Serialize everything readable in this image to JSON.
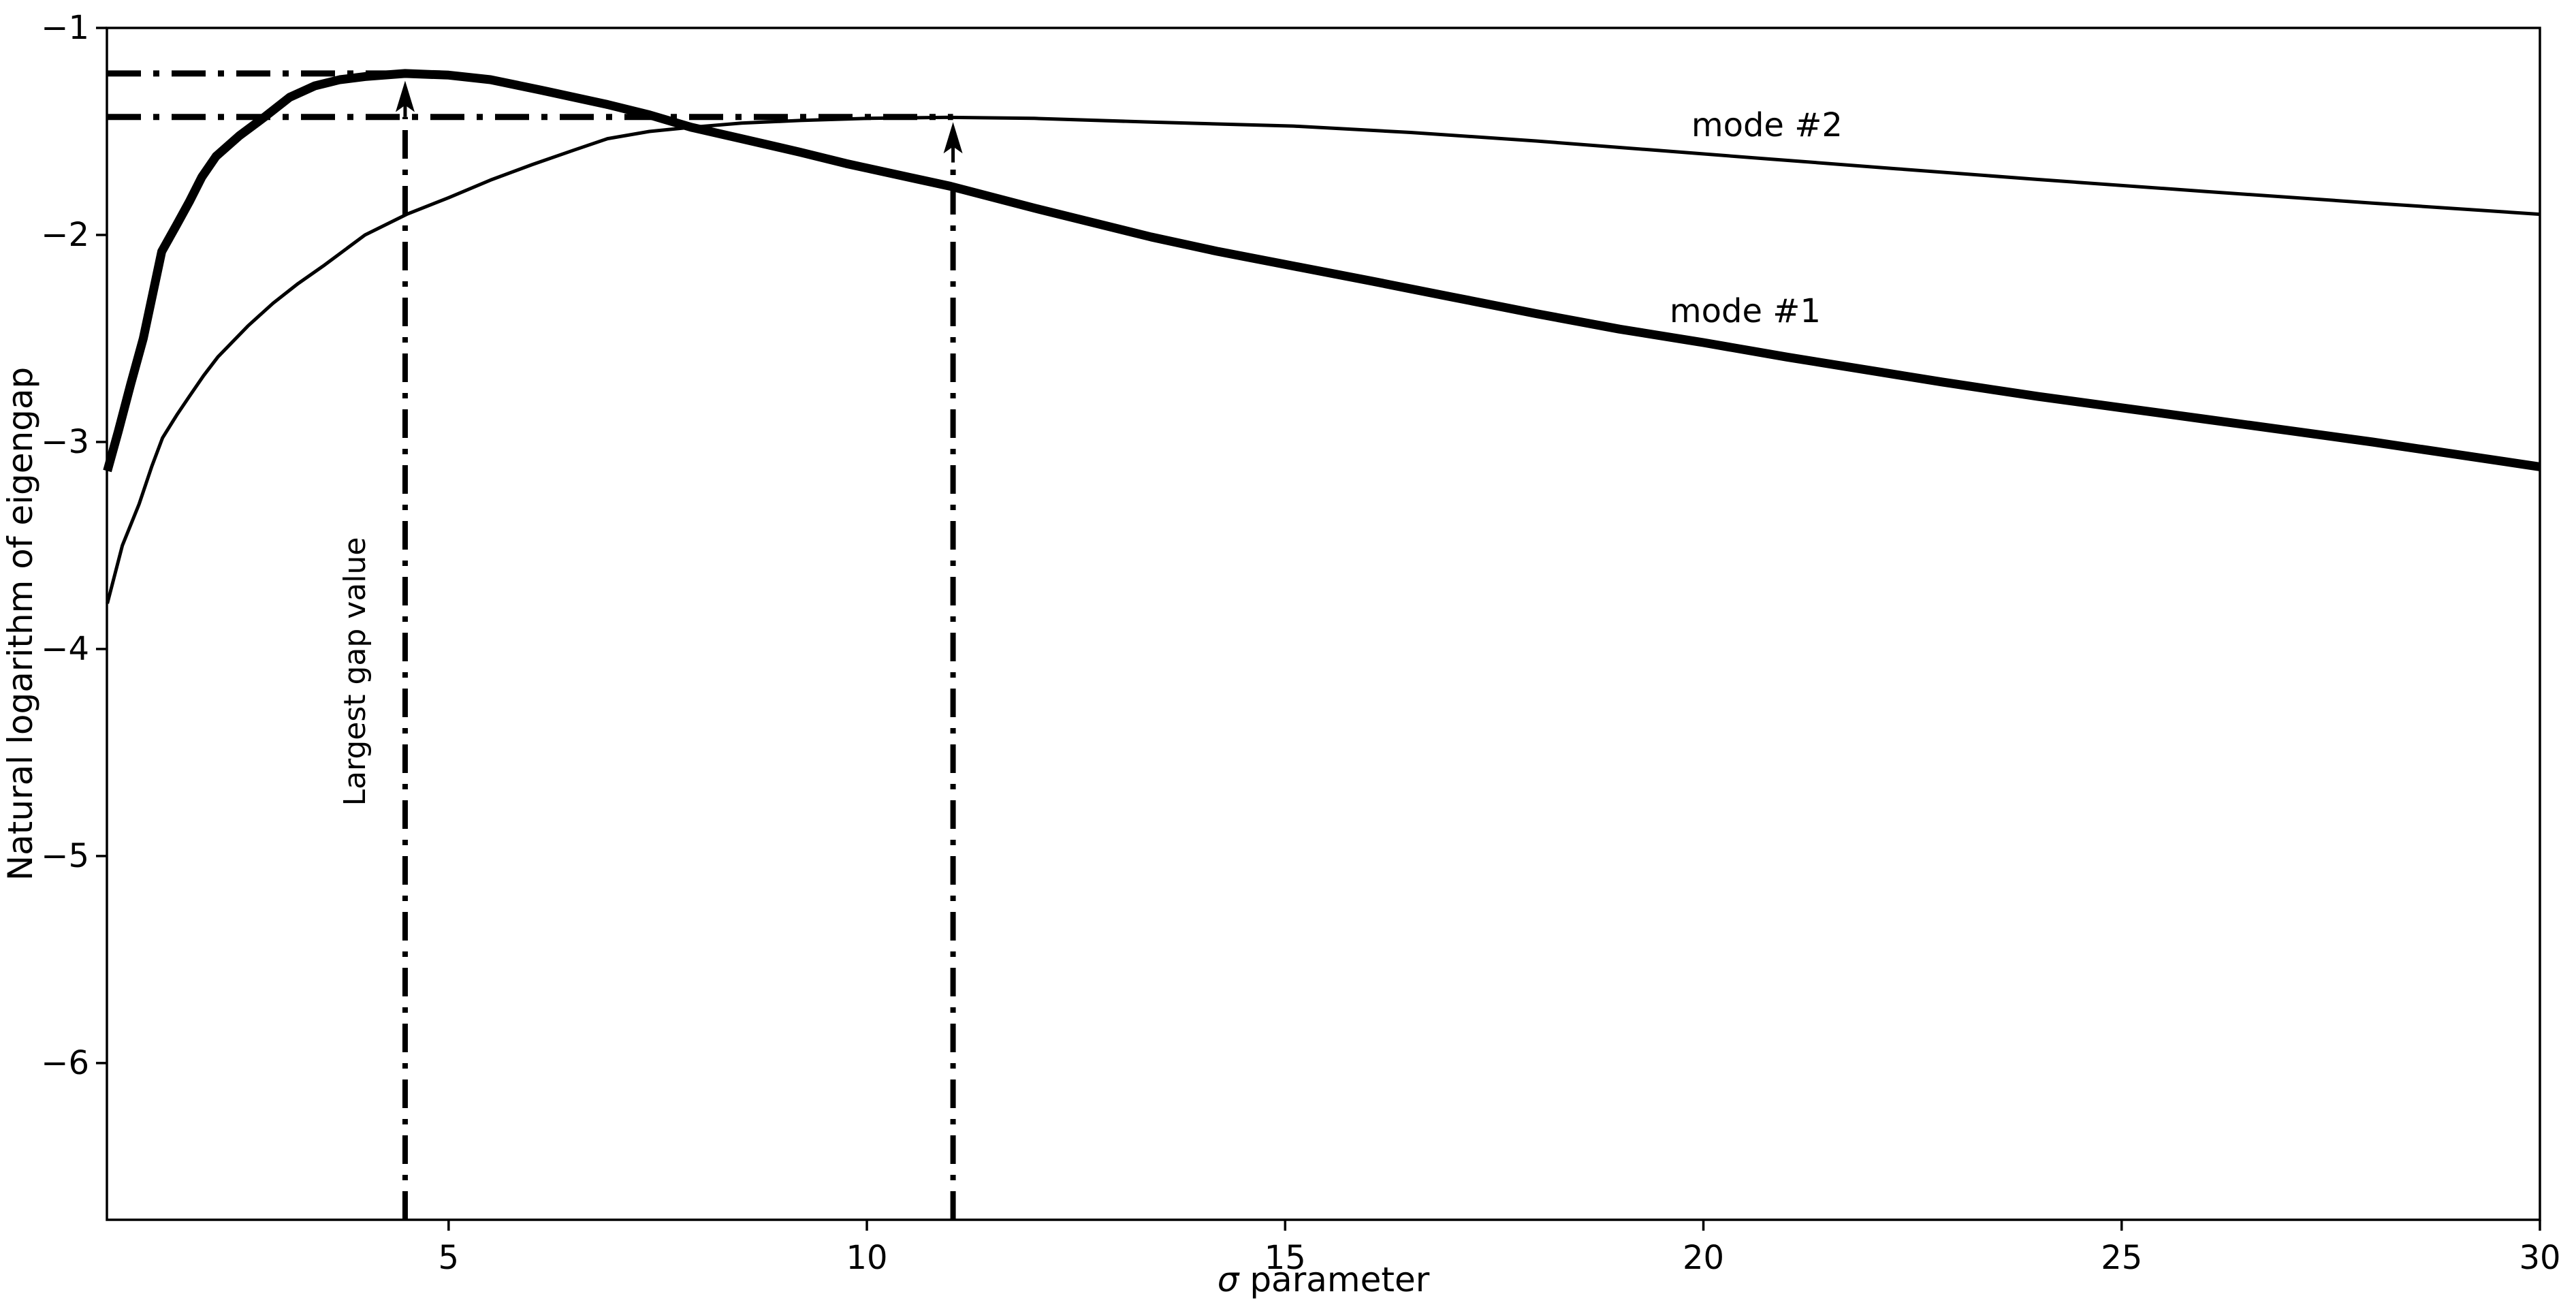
{
  "figure": {
    "background": "#ffffff",
    "line_color": "#000000"
  },
  "labels": {
    "ylabel": "Natural logarithm of eigengap",
    "xlabel_symbol": "σ",
    "xlabel_rest": " parameter",
    "mode1": "mode #1",
    "mode2": "mode #2",
    "largest_gap": "Largest gap value"
  },
  "chart_data": {
    "type": "line",
    "title": "",
    "xlabel": "σ parameter",
    "ylabel": "Natural logarithm of eigengap",
    "xlim": [
      0.915,
      30
    ],
    "ylim": [
      -6.757,
      -1
    ],
    "grid": false,
    "legend_position": "inline-text-labels",
    "x_ticks": [
      5,
      10,
      15,
      20,
      25,
      30
    ],
    "x_tick_labels": [
      "5",
      "10",
      "15",
      "20",
      "25",
      "30"
    ],
    "y_ticks": [
      -1,
      -2,
      -3,
      -4,
      -5,
      -6
    ],
    "y_tick_labels": [
      "−1",
      "−2",
      "−3",
      "−4",
      "−5",
      "−6"
    ],
    "series": [
      {
        "name": "mode #1",
        "linewidth": 13,
        "points": [
          [
            0.92,
            -3.14
          ],
          [
            1.05,
            -2.95
          ],
          [
            1.2,
            -2.72
          ],
          [
            1.35,
            -2.5
          ],
          [
            1.57,
            -2.08
          ],
          [
            1.75,
            -1.95
          ],
          [
            1.9,
            -1.84
          ],
          [
            2.05,
            -1.72
          ],
          [
            2.22,
            -1.62
          ],
          [
            2.5,
            -1.52
          ],
          [
            2.8,
            -1.43
          ],
          [
            3.1,
            -1.335
          ],
          [
            3.4,
            -1.28
          ],
          [
            3.7,
            -1.25
          ],
          [
            4.0,
            -1.235
          ],
          [
            4.48,
            -1.22
          ],
          [
            5.0,
            -1.228
          ],
          [
            5.5,
            -1.25
          ],
          [
            6.1,
            -1.3
          ],
          [
            6.9,
            -1.37
          ],
          [
            7.4,
            -1.42
          ],
          [
            7.9,
            -1.48
          ],
          [
            8.5,
            -1.535
          ],
          [
            9.2,
            -1.6
          ],
          [
            9.75,
            -1.655
          ],
          [
            10.6,
            -1.73
          ],
          [
            11.0,
            -1.765
          ],
          [
            12.0,
            -1.87
          ],
          [
            13.4,
            -2.01
          ],
          [
            14.2,
            -2.08
          ],
          [
            15.1,
            -2.15
          ],
          [
            16.0,
            -2.22
          ],
          [
            17.0,
            -2.3
          ],
          [
            18.0,
            -2.38
          ],
          [
            19.0,
            -2.455
          ],
          [
            20.0,
            -2.52
          ],
          [
            21.0,
            -2.59
          ],
          [
            22.0,
            -2.655
          ],
          [
            22.85,
            -2.71
          ],
          [
            24.0,
            -2.78
          ],
          [
            25.0,
            -2.835
          ],
          [
            26.0,
            -2.89
          ],
          [
            27.0,
            -2.945
          ],
          [
            28.0,
            -3.0
          ],
          [
            29.0,
            -3.06
          ],
          [
            30.0,
            -3.12
          ]
        ]
      },
      {
        "name": "mode #2",
        "linewidth": 5,
        "points": [
          [
            0.92,
            -3.78
          ],
          [
            1.1,
            -3.5
          ],
          [
            1.3,
            -3.3
          ],
          [
            1.45,
            -3.12
          ],
          [
            1.58,
            -2.98
          ],
          [
            1.75,
            -2.87
          ],
          [
            1.9,
            -2.78
          ],
          [
            2.07,
            -2.68
          ],
          [
            2.24,
            -2.59
          ],
          [
            2.6,
            -2.44
          ],
          [
            2.9,
            -2.33
          ],
          [
            3.2,
            -2.235
          ],
          [
            3.5,
            -2.15
          ],
          [
            4.0,
            -2.0
          ],
          [
            4.5,
            -1.9
          ],
          [
            5.0,
            -1.82
          ],
          [
            5.5,
            -1.735
          ],
          [
            6.0,
            -1.66
          ],
          [
            6.5,
            -1.59
          ],
          [
            6.9,
            -1.535
          ],
          [
            7.4,
            -1.5
          ],
          [
            7.9,
            -1.48
          ],
          [
            8.5,
            -1.46
          ],
          [
            9.2,
            -1.447
          ],
          [
            10.0,
            -1.437
          ],
          [
            11.0,
            -1.432
          ],
          [
            12.0,
            -1.437
          ],
          [
            13.4,
            -1.455
          ],
          [
            15.1,
            -1.474
          ],
          [
            16.5,
            -1.505
          ],
          [
            18.0,
            -1.546
          ],
          [
            19.4,
            -1.59
          ],
          [
            20.75,
            -1.632
          ],
          [
            22.3,
            -1.68
          ],
          [
            24.0,
            -1.732
          ],
          [
            26.0,
            -1.79
          ],
          [
            28.0,
            -1.846
          ],
          [
            30.0,
            -1.9
          ]
        ]
      }
    ],
    "annotations": {
      "hlines": [
        {
          "y": -1.22,
          "x0": 0.915,
          "x1": 4.9,
          "meaning": "largest gap value of mode #1"
        },
        {
          "y": -1.43,
          "x0": 0.915,
          "x1": 11.03,
          "meaning": "largest gap value of mode #2"
        }
      ],
      "varrows": [
        {
          "x": 4.48,
          "y_from": -6.757,
          "y_dash_to": -1.43,
          "y_tip": -1.255,
          "meaning": "sigma of mode #1 maximum"
        },
        {
          "x": 11.03,
          "y_from": -6.757,
          "y_dash_to": -1.65,
          "y_tip": -1.455,
          "meaning": "sigma of mode #2 maximum"
        }
      ],
      "labels_pos": {
        "mode1": [
          20.5,
          -2.37
        ],
        "mode2": [
          20.76,
          -1.47
        ],
        "largest_gap": [
          3.89,
          -4.11
        ]
      }
    }
  }
}
